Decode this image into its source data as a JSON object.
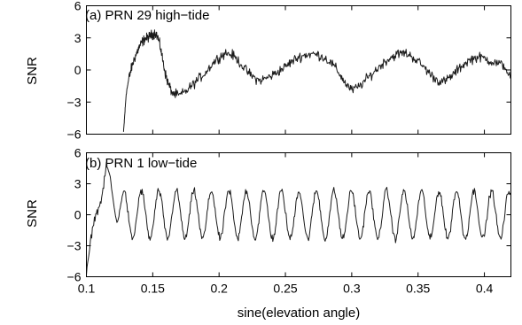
{
  "chart_data": [
    {
      "type": "line",
      "title": "(a) PRN 29 high−tide",
      "xlabel": "",
      "ylabel": "SNR",
      "xlim": [
        0.1,
        0.42
      ],
      "ylim": [
        -6,
        6
      ],
      "xticks": [
        0.1,
        0.15,
        0.2,
        0.25,
        0.3,
        0.35,
        0.4
      ],
      "xtick_labels": [],
      "yticks": [
        6,
        3,
        0,
        -3,
        -6
      ],
      "ytick_labels": [
        "6",
        "3",
        "0",
        "−3",
        "−6"
      ],
      "grid": false,
      "series": [
        {
          "x": [
            0.128,
            0.129,
            0.13,
            0.132,
            0.134,
            0.136,
            0.138,
            0.14,
            0.142,
            0.144,
            0.146,
            0.148,
            0.15,
            0.152,
            0.154,
            0.156,
            0.158,
            0.16,
            0.162,
            0.165,
            0.17,
            0.175,
            0.18,
            0.185,
            0.19,
            0.195,
            0.2,
            0.205,
            0.21,
            0.215,
            0.22,
            0.225,
            0.23,
            0.235,
            0.24,
            0.245,
            0.25,
            0.255,
            0.26,
            0.265,
            0.27,
            0.275,
            0.28,
            0.285,
            0.29,
            0.295,
            0.3,
            0.305,
            0.31,
            0.315,
            0.32,
            0.325,
            0.33,
            0.335,
            0.34,
            0.345,
            0.35,
            0.355,
            0.36,
            0.365,
            0.37,
            0.375,
            0.38,
            0.385,
            0.39,
            0.395,
            0.4,
            0.405,
            0.41,
            0.415,
            0.42
          ],
          "values": [
            -5.8,
            -4.0,
            -2.2,
            -0.8,
            0.2,
            1.0,
            1.6,
            2.2,
            2.6,
            2.9,
            3.0,
            3.2,
            3.3,
            3.5,
            3.0,
            2.0,
            0.6,
            -0.6,
            -1.4,
            -2.2,
            -2.4,
            -2.0,
            -1.4,
            -0.8,
            -0.2,
            0.6,
            1.2,
            1.6,
            1.4,
            0.8,
            0.0,
            -0.6,
            -1.0,
            -0.8,
            -0.5,
            -0.1,
            0.3,
            0.8,
            1.2,
            1.4,
            1.5,
            1.4,
            1.1,
            0.6,
            -0.2,
            -1.2,
            -1.9,
            -1.6,
            -1.0,
            -0.4,
            0.2,
            0.8,
            1.2,
            1.5,
            1.6,
            1.3,
            0.8,
            0.2,
            -0.5,
            -1.0,
            -1.1,
            -0.6,
            0.0,
            0.6,
            1.0,
            1.2,
            1.1,
            0.8,
            0.6,
            0.4,
            -0.8
          ],
          "noise": 0.45
        }
      ]
    },
    {
      "type": "line",
      "title": "(b) PRN 1 low−tide",
      "xlabel": "sine(elevation angle)",
      "ylabel": "SNR",
      "xlim": [
        0.1,
        0.42
      ],
      "ylim": [
        -6,
        6
      ],
      "xticks": [
        0.1,
        0.15,
        0.2,
        0.25,
        0.3,
        0.35,
        0.4
      ],
      "xtick_labels": [
        "0.1",
        "0.15",
        "0.2",
        "0.25",
        "0.3",
        "0.35",
        "0.4"
      ],
      "yticks": [
        6,
        3,
        0,
        -3,
        -6
      ],
      "ytick_labels": [
        "6",
        "3",
        "0",
        "−3",
        "−6"
      ],
      "grid": false,
      "series": [
        {
          "x_start": 0.1,
          "x_end": 0.42,
          "oscillation_period": 0.0132,
          "oscillation_amplitude": 2.3,
          "onset_from": -5.2,
          "early_peak_at": 0.115,
          "early_peak_value": 4.8,
          "noise": 0.35
        }
      ]
    }
  ]
}
